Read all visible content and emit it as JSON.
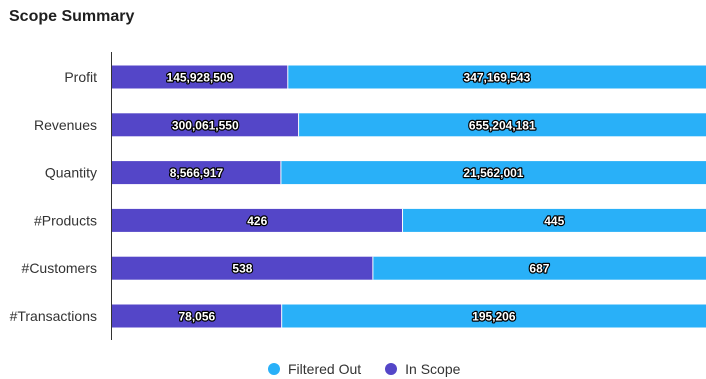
{
  "title": "Scope Summary",
  "colors": {
    "filtered_out": "#29b0f8",
    "in_scope": "#5446c8"
  },
  "legend": {
    "filtered_out": "Filtered Out",
    "in_scope": "In Scope"
  },
  "chart_data": {
    "type": "bar",
    "orientation": "horizontal",
    "stacked": "percent",
    "categories": [
      "Profit",
      "Revenues",
      "Quantity",
      "#Products",
      "#Customers",
      "#Transactions"
    ],
    "series": [
      {
        "name": "In Scope",
        "values": [
          145928509,
          300061550,
          8566917,
          426,
          538,
          78056
        ],
        "labels": [
          "145,928,509",
          "300,061,550",
          "8,566,917",
          "426",
          "538",
          "78,056"
        ]
      },
      {
        "name": "Filtered Out",
        "values": [
          347169543,
          655204181,
          21562001,
          445,
          687,
          195206
        ],
        "labels": [
          "347,169,543",
          "655,204,181",
          "21,562,001",
          "445",
          "687",
          "195,206"
        ]
      }
    ],
    "title": "Scope Summary",
    "legend_position": "bottom",
    "grid": false
  }
}
